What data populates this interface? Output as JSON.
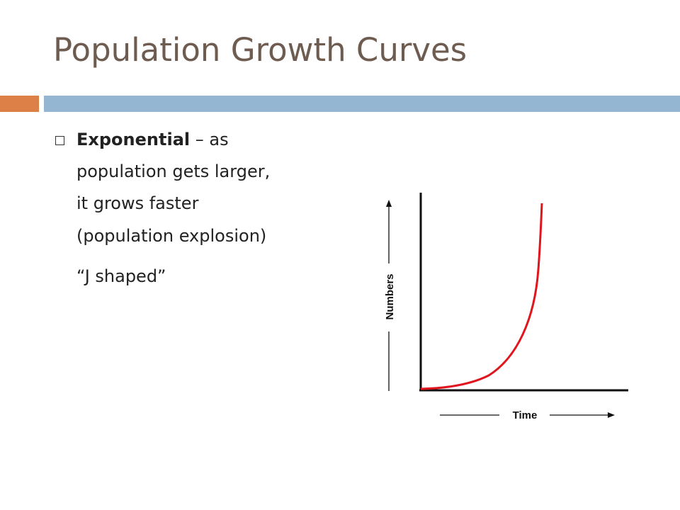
{
  "header": {
    "title": "Population Growth Curves"
  },
  "bullet": {
    "term": "Exponential",
    "lines": [
      "– as",
      "population gets larger,",
      "it grows faster",
      "(population explosion)"
    ],
    "note": "“J shaped”"
  },
  "figure": {
    "y_label": "Numbers",
    "x_label": "Time"
  }
}
